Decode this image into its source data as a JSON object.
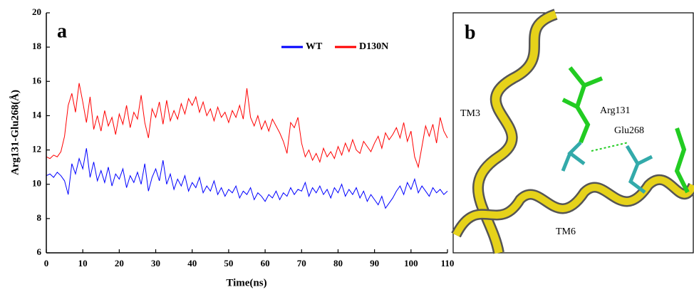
{
  "chart_data": {
    "type": "line",
    "panel_label": "a",
    "x_label": "Time(ns)",
    "y_label": "Arg131-Glu268(Å)",
    "xlim": [
      0,
      110
    ],
    "xticks": [
      0,
      10,
      20,
      30,
      40,
      50,
      60,
      70,
      80,
      90,
      100,
      110
    ],
    "ylim": [
      6,
      20
    ],
    "yticks": [
      6,
      8,
      10,
      12,
      14,
      16,
      18,
      20
    ],
    "x": [
      0,
      1,
      2,
      3,
      4,
      5,
      6,
      7,
      8,
      9,
      10,
      11,
      12,
      13,
      14,
      15,
      16,
      17,
      18,
      19,
      20,
      21,
      22,
      23,
      24,
      25,
      26,
      27,
      28,
      29,
      30,
      31,
      32,
      33,
      34,
      35,
      36,
      37,
      38,
      39,
      40,
      41,
      42,
      43,
      44,
      45,
      46,
      47,
      48,
      49,
      50,
      51,
      52,
      53,
      54,
      55,
      56,
      57,
      58,
      59,
      60,
      61,
      62,
      63,
      64,
      65,
      66,
      67,
      68,
      69,
      70,
      71,
      72,
      73,
      74,
      75,
      76,
      77,
      78,
      79,
      80,
      81,
      82,
      83,
      84,
      85,
      86,
      87,
      88,
      89,
      90,
      91,
      92,
      93,
      94,
      95,
      96,
      97,
      98,
      99,
      100,
      101,
      102,
      103,
      104,
      105,
      106,
      107,
      108,
      109,
      110
    ],
    "series": [
      {
        "name": "WT",
        "color": "#0000ff",
        "values": [
          10.5,
          10.6,
          10.4,
          10.7,
          10.5,
          10.2,
          9.4,
          11.2,
          10.6,
          11.5,
          10.9,
          12.1,
          10.4,
          11.3,
          10.2,
          10.8,
          10.1,
          11.0,
          9.9,
          10.6,
          10.3,
          10.9,
          9.8,
          10.5,
          10.1,
          10.7,
          10.0,
          11.2,
          9.6,
          10.4,
          10.9,
          10.2,
          11.4,
          10.0,
          10.6,
          9.7,
          10.3,
          9.9,
          10.5,
          9.6,
          10.1,
          9.8,
          10.4,
          9.5,
          9.9,
          9.6,
          10.2,
          9.4,
          9.8,
          9.3,
          9.7,
          9.5,
          9.9,
          9.2,
          9.6,
          9.4,
          9.8,
          9.1,
          9.5,
          9.3,
          9.0,
          9.4,
          9.2,
          9.6,
          9.1,
          9.5,
          9.3,
          9.8,
          9.4,
          9.7,
          9.6,
          10.1,
          9.3,
          9.8,
          9.5,
          9.9,
          9.4,
          9.7,
          9.2,
          9.8,
          9.5,
          10.0,
          9.3,
          9.7,
          9.4,
          9.8,
          9.2,
          9.6,
          9.0,
          9.4,
          9.1,
          8.8,
          9.3,
          8.6,
          8.9,
          9.2,
          9.6,
          9.9,
          9.4,
          10.1,
          9.7,
          10.3,
          9.5,
          9.9,
          9.6,
          9.3,
          9.8,
          9.5,
          9.7,
          9.4,
          9.6
        ]
      },
      {
        "name": "D130N",
        "color": "#ff0000",
        "values": [
          11.6,
          11.5,
          11.7,
          11.6,
          11.9,
          12.8,
          14.6,
          15.3,
          14.2,
          15.9,
          14.8,
          13.6,
          15.1,
          13.2,
          14.0,
          13.1,
          14.3,
          13.4,
          13.9,
          12.9,
          14.1,
          13.5,
          14.6,
          13.3,
          14.2,
          13.8,
          15.2,
          13.6,
          12.7,
          14.4,
          13.9,
          14.8,
          13.5,
          14.9,
          13.7,
          14.3,
          13.8,
          14.7,
          14.1,
          15.0,
          14.6,
          15.1,
          14.2,
          14.8,
          14.0,
          14.4,
          13.7,
          14.5,
          13.9,
          14.2,
          13.6,
          14.3,
          13.9,
          14.6,
          13.8,
          15.6,
          13.9,
          13.4,
          14.0,
          13.2,
          13.7,
          13.1,
          13.8,
          13.4,
          13.0,
          12.5,
          11.8,
          13.6,
          13.3,
          13.9,
          12.4,
          11.6,
          12.0,
          11.4,
          11.8,
          11.3,
          12.1,
          11.6,
          11.9,
          11.5,
          12.2,
          11.7,
          12.4,
          11.9,
          12.6,
          12.0,
          11.8,
          12.5,
          12.2,
          11.9,
          12.4,
          12.8,
          12.1,
          13.0,
          12.6,
          12.9,
          13.3,
          12.7,
          13.6,
          12.5,
          13.1,
          11.6,
          11.0,
          12.2,
          13.4,
          12.8,
          13.5,
          12.4,
          13.9,
          13.1,
          12.7
        ]
      }
    ]
  },
  "panel_b": {
    "label": "b",
    "labels": [
      "TM3",
      "Arg131",
      "Glu268",
      "TM6"
    ]
  }
}
